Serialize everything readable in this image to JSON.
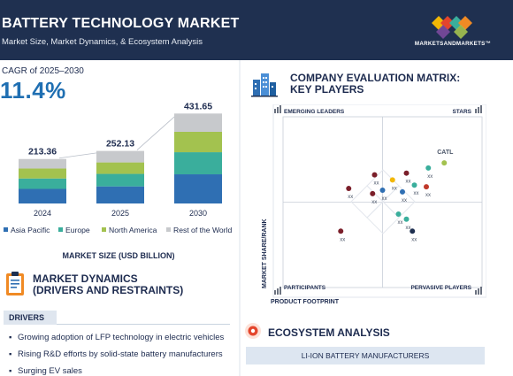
{
  "header": {
    "title": "BATTERY TECHNOLOGY MARKET",
    "subtitle": "Market Size, Market Dynamics, & Ecosystem Analysis",
    "logo_text": "MARKETSANDMARKETS™"
  },
  "cagr": {
    "label": "CAGR of 2025–2030",
    "value": "11.4%"
  },
  "chart_caption": "MARKET SIZE (USD BILLION)",
  "chart_data": {
    "type": "bar",
    "stacked": true,
    "categories": [
      "2024",
      "2025",
      "2030"
    ],
    "totals": [
      "213.36",
      "252.13",
      "431.65"
    ],
    "total_values": [
      213.36,
      252.13,
      431.65
    ],
    "series": [
      {
        "name": "Asia Pacific",
        "color": "#2f6fb3",
        "values": [
          70,
          82,
          140
        ]
      },
      {
        "name": "Europe",
        "color": "#3aae9c",
        "values": [
          50,
          60,
          106
        ]
      },
      {
        "name": "North America",
        "color": "#a3c24f",
        "values": [
          48,
          55,
          98
        ]
      },
      {
        "name": "Rest of the World",
        "color": "#c7c9cc",
        "values": [
          45.36,
          55.13,
          87.65
        ]
      }
    ],
    "ylim": [
      0,
      450
    ],
    "legend_position": "bottom"
  },
  "market_dynamics": {
    "title_line1": "MARKET DYNAMICS",
    "title_line2": "(DRIVERS AND RESTRAINTS)",
    "drivers_label": "DRIVERS",
    "drivers": [
      "Growing adoption of LFP technology in electric vehicles",
      "Rising R&D efforts by solid-state battery manufacturers",
      "Surging EV sales"
    ]
  },
  "matrix": {
    "title_line1": "COMPANY EVALUATION MATRIX:",
    "title_line2": "KEY PLAYERS",
    "quadrants": {
      "top_left": "EMERGING LEADERS",
      "top_right": "STARS",
      "bottom_left": "PARTICIPANTS",
      "bottom_right": "PERVASIVE PLAYERS"
    },
    "y_axis_label": "MARKET SHARE/RANK",
    "x_axis_label": "PRODUCT FOOTPRINT",
    "chart_data": {
      "type": "scatter",
      "points": [
        {
          "label": "CATL",
          "x": 0.81,
          "y": 0.73,
          "color": "#a3c24f"
        },
        {
          "label": "xx",
          "x": 0.73,
          "y": 0.7,
          "color": "#3aae9c"
        },
        {
          "label": "xx",
          "x": 0.66,
          "y": 0.6,
          "color": "#3aae9c"
        },
        {
          "label": "xx",
          "x": 0.72,
          "y": 0.59,
          "color": "#c0392b"
        },
        {
          "label": "xx",
          "x": 0.55,
          "y": 0.63,
          "color": "#f2b705"
        },
        {
          "label": "xx",
          "x": 0.46,
          "y": 0.66,
          "color": "#7b1f2a"
        },
        {
          "label": "xx",
          "x": 0.62,
          "y": 0.67,
          "color": "#7b1f2a"
        },
        {
          "label": "xx",
          "x": 0.6,
          "y": 0.56,
          "color": "#2f6fb3"
        },
        {
          "label": "xx",
          "x": 0.5,
          "y": 0.57,
          "color": "#2f6fb3"
        },
        {
          "label": "xx",
          "x": 0.45,
          "y": 0.55,
          "color": "#7b1f2a"
        },
        {
          "label": "xx",
          "x": 0.33,
          "y": 0.58,
          "color": "#7b1f2a"
        },
        {
          "label": "xx",
          "x": 0.58,
          "y": 0.43,
          "color": "#3aae9c"
        },
        {
          "label": "xx",
          "x": 0.62,
          "y": 0.4,
          "color": "#3aae9c"
        },
        {
          "label": "xx",
          "x": 0.65,
          "y": 0.33,
          "color": "#1f3050"
        },
        {
          "label": "xx",
          "x": 0.29,
          "y": 0.33,
          "color": "#7b1f2a"
        }
      ]
    }
  },
  "ecosystem": {
    "title": "ECOSYSTEM ANALYSIS",
    "bar_label": "LI-ION BATTERY MANUFACTURERS"
  }
}
